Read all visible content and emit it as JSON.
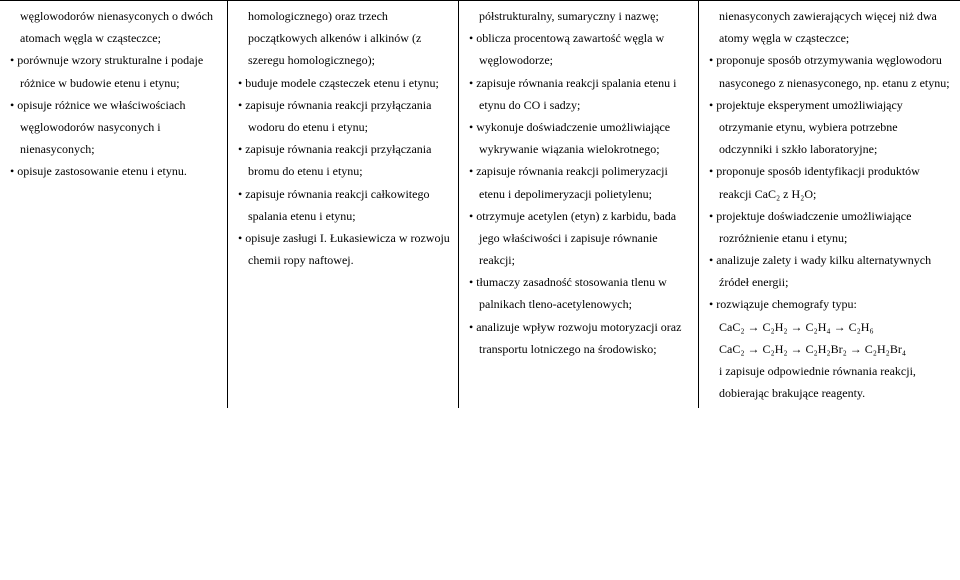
{
  "columns": {
    "col1": {
      "lead": "węglowodorów nienasyconych o dwóch atomach węgla w cząsteczce;",
      "items": [
        "porównuje wzory strukturalne i podaje różnice w budowie etenu i etynu;",
        "opisuje różnice we właściwościach węglowodorów nasyconych i nienasyconych;",
        "opisuje zastosowanie etenu i etynu."
      ]
    },
    "col2": {
      "lead": "homologicznego) oraz trzech początkowych alkenów i alkinów (z szeregu homologicznego);",
      "items": [
        "buduje modele cząsteczek etenu i etynu;",
        "zapisuje równania reakcji przyłączania wodoru do etenu i etynu;",
        "zapisuje równania reakcji przyłączania bromu do etenu i etynu;",
        "zapisuje równania reakcji całkowitego spalania etenu i etynu;",
        "opisuje zasługi I. Łukasiewicza w rozwoju chemii ropy naftowej."
      ]
    },
    "col3": {
      "lead": "półstrukturalny, sumaryczny i nazwę;",
      "items": [
        "oblicza procentową zawartość węgla w węglowodorze;",
        "zapisuje równania reakcji spalania etenu i etynu do CO i sadzy;",
        "wykonuje doświadczenie umożliwiające wykrywanie wiązania wielokrotnego;",
        "zapisuje równania reakcji polimeryzacji etenu i depolimeryzacji polietylenu;",
        "otrzymuje acetylen (etyn) z karbidu, bada jego właściwości i zapisuje równanie reakcji;",
        "tłumaczy zasadność stosowania tlenu w palnikach tleno-acetylenowych;",
        "analizuje wpływ rozwoju motoryzacji oraz transportu lotniczego  na środowisko;"
      ]
    },
    "col4": {
      "lead": "nienasyconych zawierających więcej niż dwa atomy węgla w cząsteczce;",
      "items": [
        "proponuje sposób otrzymywania węglowodoru nasyconego z nienasyconego, np. etanu z etynu;",
        "projektuje eksperyment umożliwiający otrzymanie etynu, wybiera potrzebne odczynniki i szkło laboratoryjne;",
        "proponuje sposób identyfikacji produktów reakcji CaC₂ z H₂O;",
        "projektuje doświadczenie umożliwiające rozróżnienie etanu i etynu;",
        "analizuje zalety i wady kilku alternatywnych źródeł energii;",
        "rozwiązuje chemografy typu:"
      ],
      "chem1": "CaC₂ → C₂H₂ → C₂H₄ → C₂H₆",
      "chem2": "CaC₂ → C₂H₂ → C₂H₂Br₂ → C₂H₂Br₄",
      "tail": "i zapisuje odpowiednie równania reakcji, dobierając brakujące reagenty."
    }
  }
}
